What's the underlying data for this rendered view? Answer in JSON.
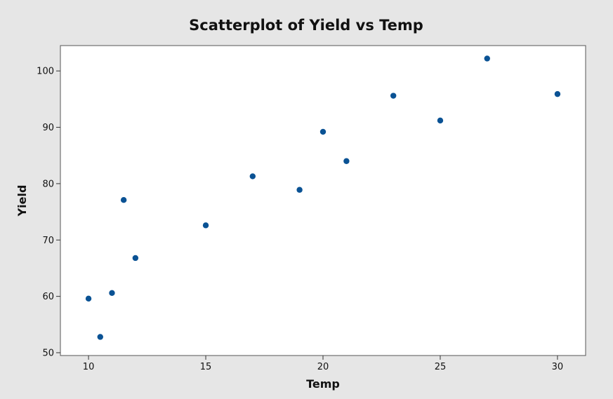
{
  "chart_data": {
    "type": "scatter",
    "title": "Scatterplot of Yield vs Temp",
    "xlabel": "Temp",
    "ylabel": "Yield",
    "xlim": [
      8.8,
      31.2
    ],
    "ylim": [
      49.5,
      104.5
    ],
    "x_ticks": [
      10,
      15,
      20,
      25,
      30
    ],
    "y_ticks": [
      50,
      60,
      70,
      80,
      90,
      100
    ],
    "grid": false,
    "marker_color": "#0a5294",
    "points": [
      {
        "x": 10,
        "y": 59.6
      },
      {
        "x": 10.5,
        "y": 52.8
      },
      {
        "x": 11,
        "y": 60.6
      },
      {
        "x": 11.5,
        "y": 77.1
      },
      {
        "x": 12,
        "y": 66.8
      },
      {
        "x": 15,
        "y": 72.6
      },
      {
        "x": 17,
        "y": 81.3
      },
      {
        "x": 19,
        "y": 78.9
      },
      {
        "x": 20,
        "y": 89.2
      },
      {
        "x": 21,
        "y": 84.0
      },
      {
        "x": 23,
        "y": 95.6
      },
      {
        "x": 25,
        "y": 91.2
      },
      {
        "x": 27,
        "y": 102.2
      },
      {
        "x": 30,
        "y": 95.9
      }
    ]
  },
  "colors": {
    "background": "#e6e6e6",
    "plot_area": "#ffffff",
    "axis": "#333333"
  }
}
